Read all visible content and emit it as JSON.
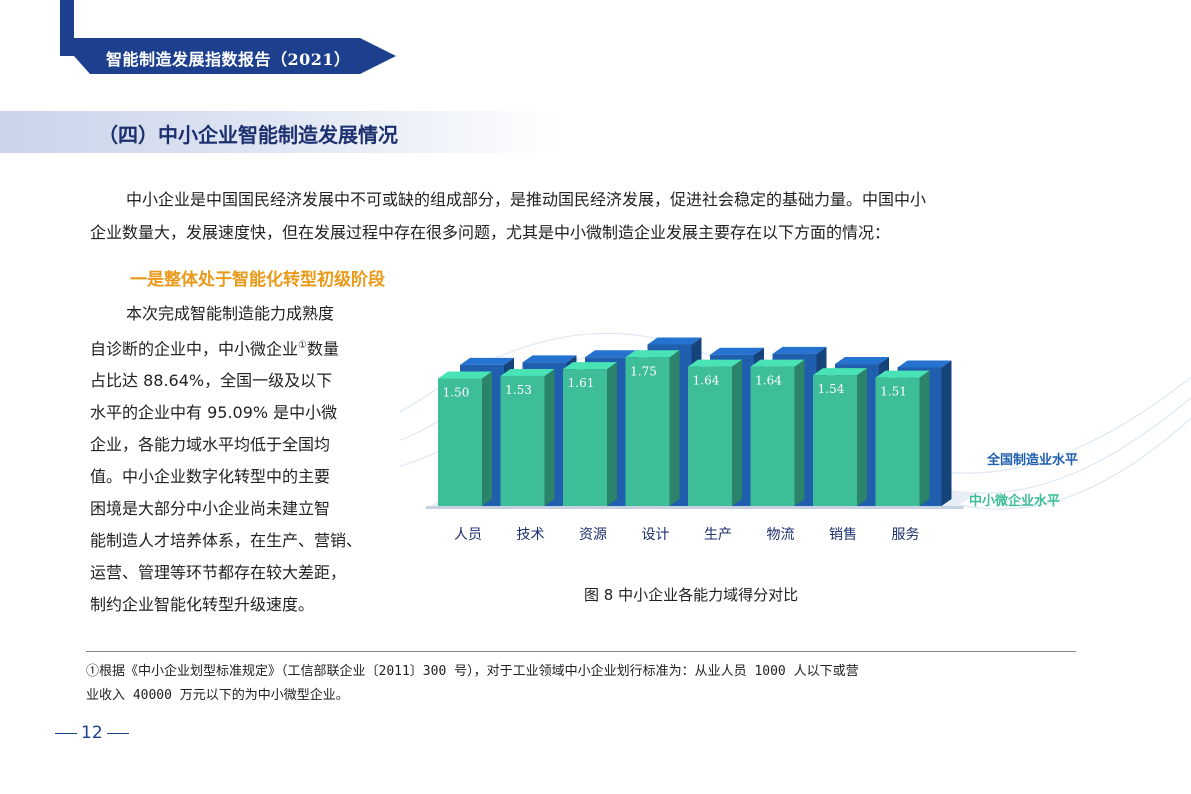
{
  "header": {
    "title": "智能制造发展指数报告（2021）"
  },
  "section": {
    "title": "（四）中小企业智能制造发展情况"
  },
  "intro": {
    "line1": "中小企业是中国国民经济发展中不可或缺的组成部分，是推动国民经济发展，促进社会稳定的基础力量。中国中小",
    "line2": "企业数量大，发展速度快，但在发展过程中存在很多问题，尤其是中小微制造企业发展主要存在以下方面的情况："
  },
  "subheading": "一是整体处于智能化转型初级阶段",
  "body_lines": [
    "本次完成智能制造能力成熟度",
    "自诊断的企业中，中小微企业",
    "占比达 88.64%，全国一级及以下",
    "水平的企业中有 95.09% 是中小微",
    "企业，各能力域水平均低于全国均",
    "值。中小企业数字化转型中的主要",
    "困境是大部分中小企业尚未建立智",
    "能制造人才培养体系，在生产、营销、",
    "运营、管理等环节都存在较大差距，",
    "制约企业智能化转型升级速度。"
  ],
  "footnote_marker": "①",
  "body_line2_tail": "数量",
  "chart_data": {
    "type": "bar",
    "categories": [
      "人员",
      "技术",
      "资源",
      "设计",
      "生产",
      "物流",
      "销售",
      "服务"
    ],
    "series": [
      {
        "name": "全国制造业水平",
        "values": [
          1.66,
          1.69,
          1.75,
          1.9,
          1.78,
          1.79,
          1.67,
          1.63
        ],
        "color": "#1f5fae"
      },
      {
        "name": "中小微企业水平",
        "values": [
          1.5,
          1.53,
          1.61,
          1.75,
          1.64,
          1.64,
          1.54,
          1.51
        ],
        "color": "#3dbd98"
      }
    ],
    "legend": "right",
    "grid": false
  },
  "caption": "图 8 中小企业各能力域得分对比",
  "footnote": {
    "line1": "①根据《中小企业划型标准规定》（工信部联企业〔2011〕300 号），对于工业领域中小企业划行标准为：从业人员 1000 人以下或营",
    "line2": "业收入 40000 万元以下的为中小微型企业。"
  },
  "page_number": "12"
}
